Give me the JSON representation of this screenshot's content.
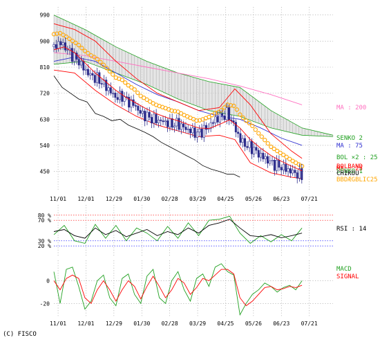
{
  "colors": {
    "price_up": "#2a2a8a",
    "price_down": "#ffffff",
    "price_line": "#000000",
    "ma200": "#ff70c0",
    "ma75": "#3030d0",
    "ma25": "#ff0000",
    "bollinger": "#ffa500",
    "senko1": "#20a020",
    "senko2": "#20a020",
    "lagging": "#000000",
    "cloud": "#bbbbbb",
    "rsi": "#000000",
    "rsi2": "#20a020",
    "macd": "#20a020",
    "signal": "#ff0000",
    "ob": "#ff0000",
    "os": "#0000ff"
  },
  "copyright": "(C) FISCO",
  "chart_data": [
    {
      "type": "line",
      "panel": "price",
      "x_tick_labels": [
        "11/01",
        "12/01",
        "12/29",
        "01/30",
        "02/28",
        "03/29",
        "04/25",
        "05/26",
        "06/23",
        "07/21"
      ],
      "y_tick_labels": [
        "990",
        "900",
        "810",
        "720",
        "630",
        "540",
        "450"
      ],
      "y_ticks": [
        990,
        900,
        810,
        720,
        630,
        540,
        450
      ],
      "ylim": [
        382,
        1018
      ],
      "grid": true,
      "legend_placement": "right",
      "legend": {
        "ma200": "MA : 200",
        "senko2": "SENKO 2",
        "ma75": "MA : 75",
        "bol": "BOL ×2 : 25",
        "overlap1": "BOLBAND",
        "overlap2": "MA : 25",
        "overlap3": "SENKO 1",
        "overlap4": "CHIKOU",
        "overlap5": "BBDÆGBLIC25"
      },
      "series": {
        "close": [
          [
            0,
            880
          ],
          [
            6,
            895
          ],
          [
            12,
            875
          ],
          [
            18,
            850
          ],
          [
            24,
            830
          ],
          [
            30,
            800
          ],
          [
            36,
            780
          ],
          [
            42,
            770
          ],
          [
            48,
            752
          ],
          [
            54,
            728
          ],
          [
            60,
            705
          ],
          [
            66,
            710
          ],
          [
            72,
            690
          ],
          [
            78,
            680
          ],
          [
            84,
            650
          ],
          [
            90,
            640
          ],
          [
            96,
            630
          ],
          [
            102,
            625
          ],
          [
            108,
            620
          ],
          [
            114,
            612
          ],
          [
            120,
            615
          ],
          [
            126,
            600
          ],
          [
            132,
            590
          ],
          [
            138,
            580
          ],
          [
            144,
            590
          ],
          [
            150,
            605
          ],
          [
            156,
            630
          ],
          [
            162,
            640
          ],
          [
            168,
            650
          ],
          [
            174,
            610
          ],
          [
            180,
            560
          ],
          [
            186,
            540
          ],
          [
            192,
            530
          ],
          [
            198,
            510
          ],
          [
            204,
            495
          ],
          [
            210,
            480
          ],
          [
            216,
            470
          ],
          [
            222,
            462
          ],
          [
            228,
            452
          ],
          [
            234,
            443
          ],
          [
            240,
            435
          ]
        ],
        "ma25": [
          [
            0,
            870
          ],
          [
            10,
            880
          ],
          [
            20,
            860
          ],
          [
            30,
            825
          ],
          [
            40,
            790
          ],
          [
            50,
            760
          ],
          [
            60,
            730
          ],
          [
            70,
            705
          ],
          [
            80,
            685
          ],
          [
            90,
            665
          ],
          [
            100,
            648
          ],
          [
            110,
            635
          ],
          [
            120,
            625
          ],
          [
            130,
            612
          ],
          [
            140,
            600
          ],
          [
            150,
            598
          ],
          [
            160,
            612
          ],
          [
            170,
            628
          ],
          [
            180,
            600
          ],
          [
            190,
            560
          ],
          [
            200,
            530
          ],
          [
            210,
            505
          ],
          [
            220,
            485
          ],
          [
            230,
            468
          ],
          [
            240,
            452
          ]
        ],
        "ma75": [
          [
            0,
            830
          ],
          [
            20,
            845
          ],
          [
            40,
            830
          ],
          [
            60,
            790
          ],
          [
            80,
            750
          ],
          [
            100,
            715
          ],
          [
            120,
            690
          ],
          [
            140,
            660
          ],
          [
            160,
            640
          ],
          [
            180,
            630
          ],
          [
            200,
            600
          ],
          [
            220,
            565
          ],
          [
            240,
            540
          ]
        ],
        "ma200": [
          [
            0,
            860
          ],
          [
            30,
            850
          ],
          [
            60,
            830
          ],
          [
            90,
            810
          ],
          [
            120,
            790
          ],
          [
            150,
            770
          ],
          [
            180,
            745
          ],
          [
            210,
            715
          ],
          [
            240,
            680
          ]
        ],
        "boll_upper": [
          [
            0,
            960
          ],
          [
            20,
            940
          ],
          [
            40,
            900
          ],
          [
            60,
            830
          ],
          [
            80,
            770
          ],
          [
            100,
            720
          ],
          [
            120,
            690
          ],
          [
            140,
            660
          ],
          [
            160,
            670
          ],
          [
            175,
            735
          ],
          [
            190,
            680
          ],
          [
            210,
            580
          ],
          [
            230,
            520
          ],
          [
            240,
            495
          ]
        ],
        "boll_lower": [
          [
            0,
            800
          ],
          [
            20,
            790
          ],
          [
            40,
            730
          ],
          [
            60,
            680
          ],
          [
            80,
            640
          ],
          [
            100,
            610
          ],
          [
            120,
            590
          ],
          [
            140,
            570
          ],
          [
            160,
            575
          ],
          [
            175,
            560
          ],
          [
            190,
            480
          ],
          [
            210,
            445
          ],
          [
            230,
            430
          ],
          [
            240,
            425
          ]
        ],
        "senko1": [
          [
            0,
            820
          ],
          [
            30,
            830
          ],
          [
            60,
            790
          ],
          [
            90,
            750
          ],
          [
            120,
            700
          ],
          [
            150,
            660
          ],
          [
            180,
            640
          ],
          [
            210,
            600
          ],
          [
            240,
            575
          ],
          [
            270,
            570
          ]
        ],
        "senko2": [
          [
            0,
            990
          ],
          [
            30,
            940
          ],
          [
            60,
            880
          ],
          [
            90,
            830
          ],
          [
            120,
            790
          ],
          [
            150,
            760
          ],
          [
            180,
            740
          ],
          [
            210,
            660
          ],
          [
            240,
            600
          ],
          [
            270,
            575
          ]
        ],
        "lagging": [
          [
            0,
            780
          ],
          [
            8,
            740
          ],
          [
            16,
            720
          ],
          [
            24,
            700
          ],
          [
            32,
            690
          ],
          [
            40,
            650
          ],
          [
            48,
            640
          ],
          [
            56,
            625
          ],
          [
            64,
            630
          ],
          [
            72,
            610
          ],
          [
            80,
            598
          ],
          [
            88,
            585
          ],
          [
            96,
            570
          ],
          [
            104,
            550
          ],
          [
            112,
            535
          ],
          [
            120,
            520
          ],
          [
            128,
            505
          ],
          [
            136,
            490
          ],
          [
            144,
            470
          ],
          [
            152,
            458
          ],
          [
            160,
            450
          ],
          [
            168,
            440
          ],
          [
            174,
            440
          ],
          [
            180,
            430
          ]
        ]
      },
      "x_range": [
        0,
        270
      ]
    },
    {
      "type": "line",
      "panel": "rsi",
      "y_tick_labels": [
        "80 %",
        "70 %",
        "30 %",
        "20 %"
      ],
      "y_ticks": [
        80,
        70,
        30,
        20
      ],
      "ylim": [
        0,
        100
      ],
      "legend": {
        "rsi": "RSI : 14"
      },
      "series": {
        "rsi": [
          [
            0,
            48
          ],
          [
            10,
            52
          ],
          [
            20,
            40
          ],
          [
            30,
            35
          ],
          [
            40,
            55
          ],
          [
            50,
            42
          ],
          [
            60,
            50
          ],
          [
            70,
            38
          ],
          [
            80,
            45
          ],
          [
            90,
            52
          ],
          [
            100,
            40
          ],
          [
            110,
            48
          ],
          [
            120,
            42
          ],
          [
            130,
            55
          ],
          [
            140,
            45
          ],
          [
            150,
            60
          ],
          [
            160,
            65
          ],
          [
            170,
            72
          ],
          [
            180,
            55
          ],
          [
            190,
            40
          ],
          [
            200,
            38
          ],
          [
            210,
            42
          ],
          [
            220,
            36
          ],
          [
            230,
            40
          ],
          [
            240,
            45
          ]
        ],
        "rsi_alt": [
          [
            0,
            42
          ],
          [
            10,
            60
          ],
          [
            20,
            30
          ],
          [
            30,
            25
          ],
          [
            40,
            62
          ],
          [
            50,
            35
          ],
          [
            60,
            60
          ],
          [
            70,
            30
          ],
          [
            80,
            55
          ],
          [
            90,
            45
          ],
          [
            100,
            30
          ],
          [
            110,
            58
          ],
          [
            120,
            35
          ],
          [
            130,
            65
          ],
          [
            140,
            40
          ],
          [
            150,
            70
          ],
          [
            160,
            72
          ],
          [
            170,
            78
          ],
          [
            180,
            45
          ],
          [
            190,
            25
          ],
          [
            200,
            40
          ],
          [
            210,
            28
          ],
          [
            220,
            42
          ],
          [
            230,
            30
          ],
          [
            240,
            55
          ]
        ]
      },
      "x_range": [
        0,
        270
      ]
    },
    {
      "type": "line",
      "panel": "macd",
      "y_tick_labels": [
        "0",
        "-20"
      ],
      "y_ticks": [
        0,
        -20
      ],
      "ylim": [
        -32,
        18
      ],
      "legend": {
        "macd": "MACD",
        "signal": "SIGNAL"
      },
      "series": {
        "macd": [
          [
            0,
            8
          ],
          [
            6,
            -20
          ],
          [
            12,
            10
          ],
          [
            18,
            12
          ],
          [
            24,
            -5
          ],
          [
            30,
            -25
          ],
          [
            36,
            -18
          ],
          [
            42,
            0
          ],
          [
            48,
            5
          ],
          [
            54,
            -15
          ],
          [
            60,
            -22
          ],
          [
            66,
            2
          ],
          [
            72,
            6
          ],
          [
            78,
            -12
          ],
          [
            84,
            -20
          ],
          [
            90,
            4
          ],
          [
            96,
            10
          ],
          [
            102,
            -15
          ],
          [
            108,
            -20
          ],
          [
            114,
            0
          ],
          [
            120,
            8
          ],
          [
            126,
            -8
          ],
          [
            132,
            -18
          ],
          [
            138,
            2
          ],
          [
            144,
            6
          ],
          [
            150,
            -5
          ],
          [
            156,
            12
          ],
          [
            162,
            15
          ],
          [
            168,
            8
          ],
          [
            174,
            5
          ],
          [
            180,
            -30
          ],
          [
            186,
            -20
          ],
          [
            192,
            -12
          ],
          [
            198,
            -8
          ],
          [
            204,
            -2
          ],
          [
            210,
            -5
          ],
          [
            216,
            -10
          ],
          [
            222,
            -6
          ],
          [
            228,
            -4
          ],
          [
            234,
            -8
          ],
          [
            240,
            0
          ]
        ],
        "signal": [
          [
            0,
            0
          ],
          [
            6,
            -8
          ],
          [
            12,
            2
          ],
          [
            18,
            5
          ],
          [
            24,
            2
          ],
          [
            30,
            -15
          ],
          [
            36,
            -20
          ],
          [
            42,
            -8
          ],
          [
            48,
            0
          ],
          [
            54,
            -8
          ],
          [
            60,
            -18
          ],
          [
            66,
            -8
          ],
          [
            72,
            0
          ],
          [
            78,
            -5
          ],
          [
            84,
            -16
          ],
          [
            90,
            -5
          ],
          [
            96,
            4
          ],
          [
            102,
            -5
          ],
          [
            108,
            -15
          ],
          [
            114,
            -8
          ],
          [
            120,
            2
          ],
          [
            126,
            -2
          ],
          [
            132,
            -12
          ],
          [
            138,
            -6
          ],
          [
            144,
            2
          ],
          [
            150,
            0
          ],
          [
            156,
            5
          ],
          [
            162,
            10
          ],
          [
            168,
            10
          ],
          [
            174,
            6
          ],
          [
            180,
            -15
          ],
          [
            186,
            -22
          ],
          [
            192,
            -18
          ],
          [
            198,
            -12
          ],
          [
            204,
            -6
          ],
          [
            210,
            -5
          ],
          [
            216,
            -8
          ],
          [
            222,
            -7
          ],
          [
            228,
            -5
          ],
          [
            234,
            -6
          ],
          [
            240,
            -4
          ]
        ]
      },
      "x_range": [
        0,
        270
      ]
    }
  ]
}
